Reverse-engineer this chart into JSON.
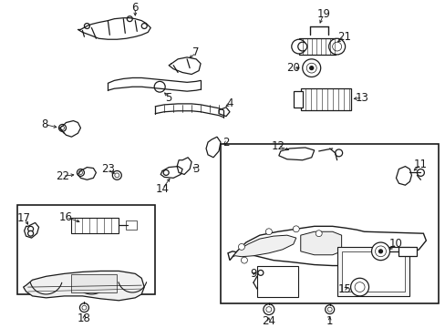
{
  "background_color": "#ffffff",
  "line_color": "#1a1a1a",
  "figsize": [
    4.89,
    3.6
  ],
  "dpi": 100,
  "parts": {
    "label_fontsize": 8.5,
    "arrow_lw": 0.6,
    "part_lw": 0.9
  }
}
